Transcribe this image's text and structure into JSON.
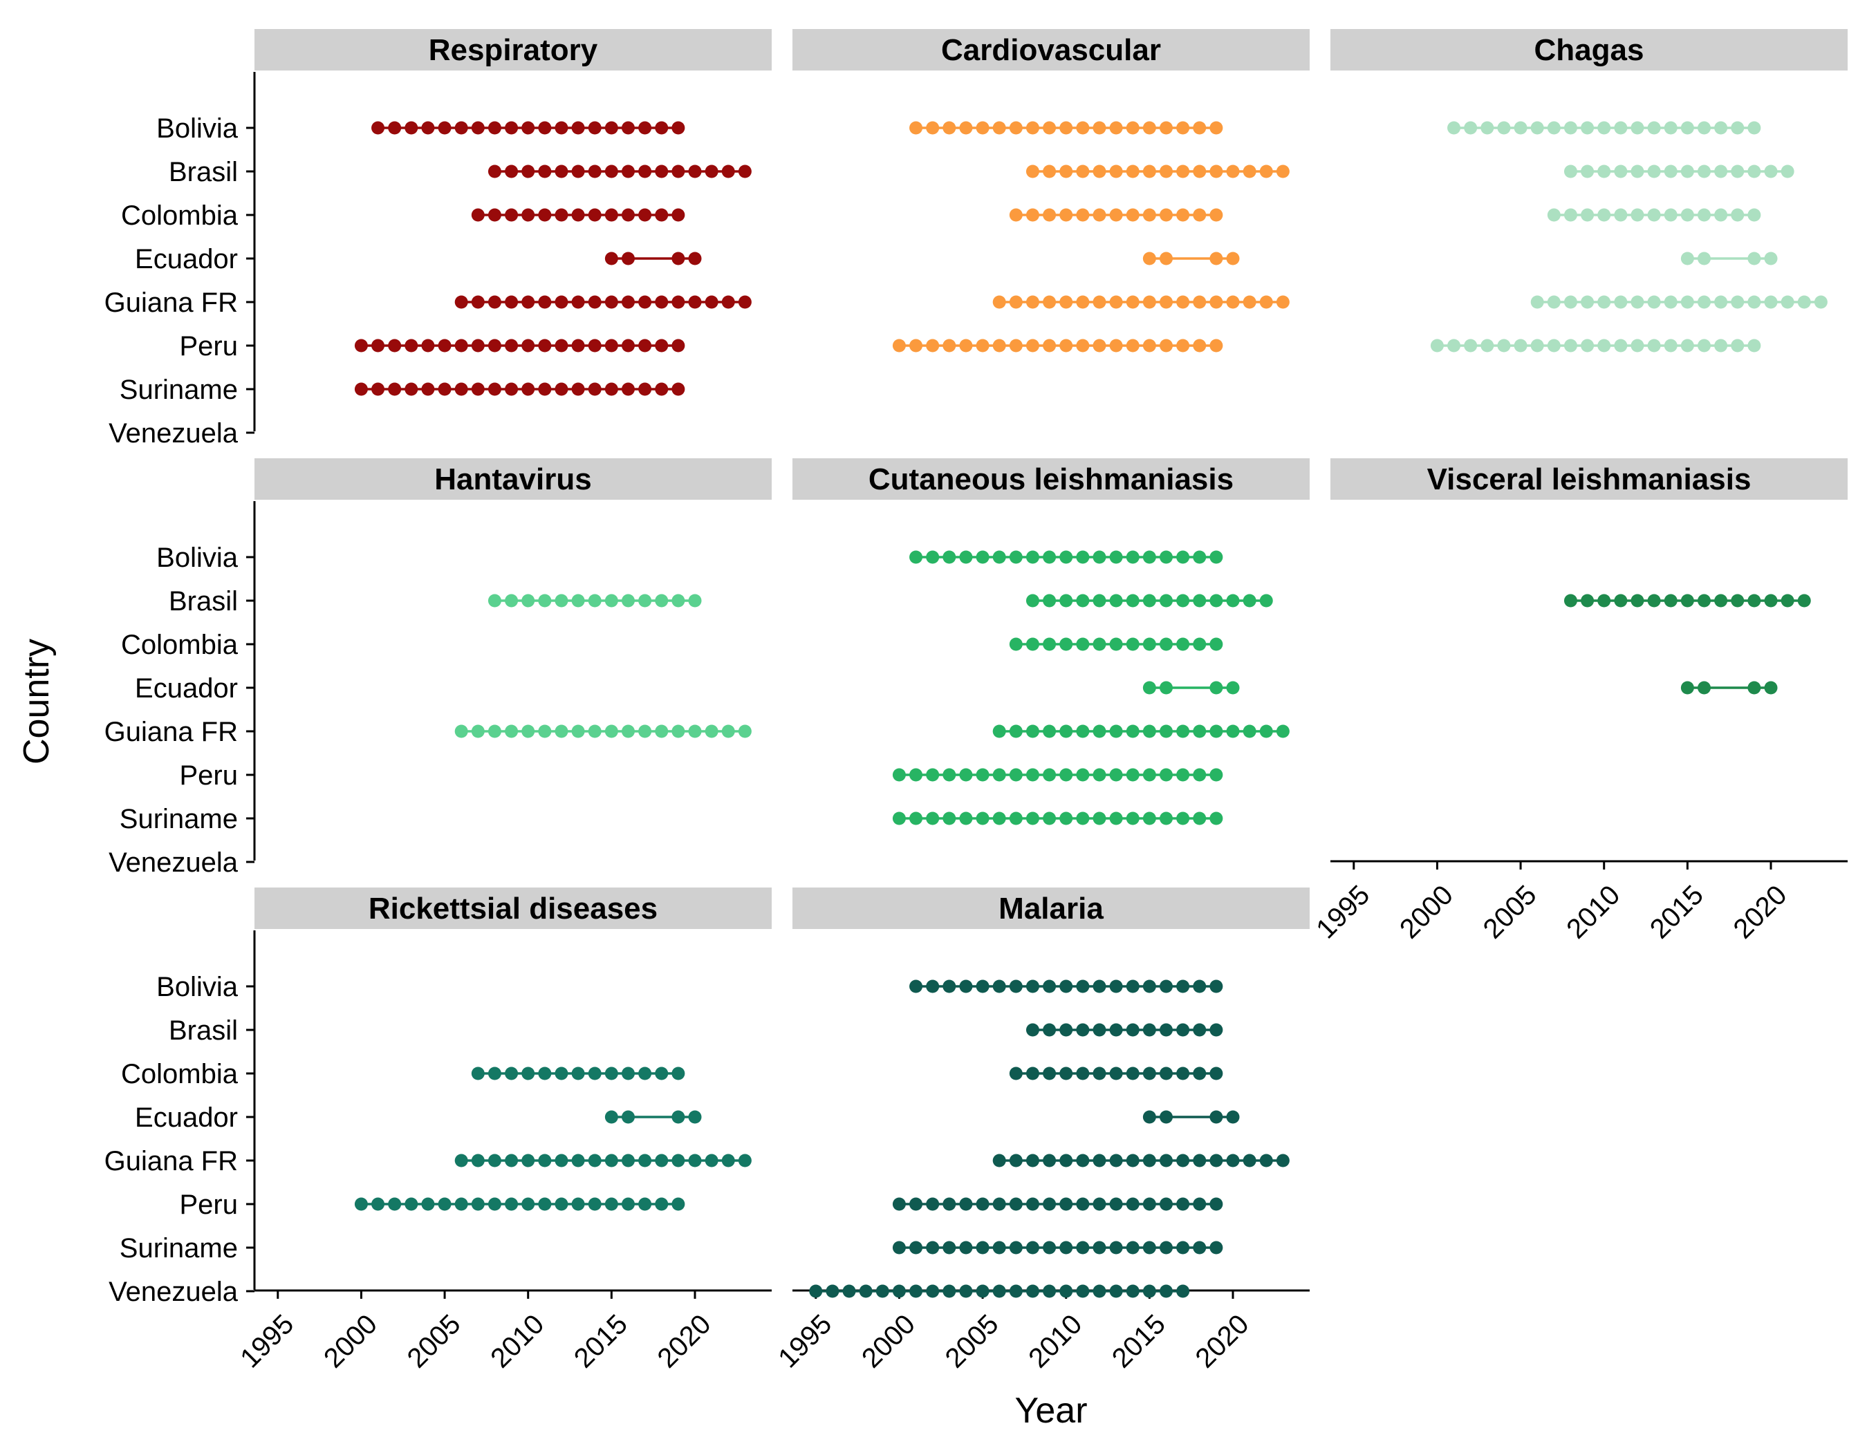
{
  "chart_data": {
    "type": "dot-timeline",
    "layout": "facets-3-columns",
    "xlabel": "Year",
    "ylabel": "Country",
    "xlim": [
      1993.6,
      2024.6
    ],
    "x_ticks": [
      1995,
      2000,
      2005,
      2010,
      2015,
      2020
    ],
    "x_tick_labels": [
      "1995",
      "2000",
      "2005",
      "2010",
      "2015",
      "2020"
    ],
    "categories": [
      "Bolivia",
      "Brasil",
      "Colombia",
      "Ecuador",
      "Guiana FR",
      "Peru",
      "Suriname",
      "Venezuela"
    ],
    "grid": false,
    "legend": "none",
    "panels": [
      {
        "title": "Respiratory",
        "color": "#980a0a",
        "series": [
          {
            "country": "Bolivia",
            "years": [
              2001,
              2002,
              2003,
              2004,
              2005,
              2006,
              2007,
              2008,
              2009,
              2010,
              2011,
              2012,
              2013,
              2014,
              2015,
              2016,
              2017,
              2018,
              2019
            ]
          },
          {
            "country": "Brasil",
            "years": [
              2008,
              2009,
              2010,
              2011,
              2012,
              2013,
              2014,
              2015,
              2016,
              2017,
              2018,
              2019,
              2020,
              2021,
              2022,
              2023
            ]
          },
          {
            "country": "Colombia",
            "years": [
              2007,
              2008,
              2009,
              2010,
              2011,
              2012,
              2013,
              2014,
              2015,
              2016,
              2017,
              2018,
              2019
            ]
          },
          {
            "country": "Ecuador",
            "years": [
              2015,
              2016,
              2019,
              2020
            ]
          },
          {
            "country": "Guiana FR",
            "years": [
              2006,
              2007,
              2008,
              2009,
              2010,
              2011,
              2012,
              2013,
              2014,
              2015,
              2016,
              2017,
              2018,
              2019,
              2020,
              2021,
              2022,
              2023
            ]
          },
          {
            "country": "Peru",
            "years": [
              2000,
              2001,
              2002,
              2003,
              2004,
              2005,
              2006,
              2007,
              2008,
              2009,
              2010,
              2011,
              2012,
              2013,
              2014,
              2015,
              2016,
              2017,
              2018,
              2019
            ]
          },
          {
            "country": "Suriname",
            "years": [
              2000,
              2001,
              2002,
              2003,
              2004,
              2005,
              2006,
              2007,
              2008,
              2009,
              2010,
              2011,
              2012,
              2013,
              2014,
              2015,
              2016,
              2017,
              2018,
              2019
            ]
          }
        ]
      },
      {
        "title": "Cardiovascular",
        "color": "#fb9a3d",
        "series": [
          {
            "country": "Bolivia",
            "years": [
              2001,
              2002,
              2003,
              2004,
              2005,
              2006,
              2007,
              2008,
              2009,
              2010,
              2011,
              2012,
              2013,
              2014,
              2015,
              2016,
              2017,
              2018,
              2019
            ]
          },
          {
            "country": "Brasil",
            "years": [
              2008,
              2009,
              2010,
              2011,
              2012,
              2013,
              2014,
              2015,
              2016,
              2017,
              2018,
              2019,
              2020,
              2021,
              2022,
              2023
            ]
          },
          {
            "country": "Colombia",
            "years": [
              2007,
              2008,
              2009,
              2010,
              2011,
              2012,
              2013,
              2014,
              2015,
              2016,
              2017,
              2018,
              2019
            ]
          },
          {
            "country": "Ecuador",
            "years": [
              2015,
              2016,
              2019,
              2020
            ]
          },
          {
            "country": "Guiana FR",
            "years": [
              2006,
              2007,
              2008,
              2009,
              2010,
              2011,
              2012,
              2013,
              2014,
              2015,
              2016,
              2017,
              2018,
              2019,
              2020,
              2021,
              2022,
              2023
            ]
          },
          {
            "country": "Peru",
            "years": [
              2000,
              2001,
              2002,
              2003,
              2004,
              2005,
              2006,
              2007,
              2008,
              2009,
              2010,
              2011,
              2012,
              2013,
              2014,
              2015,
              2016,
              2017,
              2018,
              2019
            ]
          }
        ]
      },
      {
        "title": "Chagas",
        "color": "#ace0c1",
        "series": [
          {
            "country": "Bolivia",
            "years": [
              2001,
              2002,
              2003,
              2004,
              2005,
              2006,
              2007,
              2008,
              2009,
              2010,
              2011,
              2012,
              2013,
              2014,
              2015,
              2016,
              2017,
              2018,
              2019
            ]
          },
          {
            "country": "Brasil",
            "years": [
              2008,
              2009,
              2010,
              2011,
              2012,
              2013,
              2014,
              2015,
              2016,
              2017,
              2018,
              2019,
              2020,
              2021
            ]
          },
          {
            "country": "Colombia",
            "years": [
              2007,
              2008,
              2009,
              2010,
              2011,
              2012,
              2013,
              2014,
              2015,
              2016,
              2017,
              2018,
              2019
            ]
          },
          {
            "country": "Ecuador",
            "years": [
              2015,
              2016,
              2019,
              2020
            ]
          },
          {
            "country": "Guiana FR",
            "years": [
              2006,
              2007,
              2008,
              2009,
              2010,
              2011,
              2012,
              2013,
              2014,
              2015,
              2016,
              2017,
              2018,
              2019,
              2020,
              2021,
              2022,
              2023
            ]
          },
          {
            "country": "Peru",
            "years": [
              2000,
              2001,
              2002,
              2003,
              2004,
              2005,
              2006,
              2007,
              2008,
              2009,
              2010,
              2011,
              2012,
              2013,
              2014,
              2015,
              2016,
              2017,
              2018,
              2019
            ]
          }
        ]
      },
      {
        "title": "Hantavirus",
        "color": "#5ad18f",
        "series": [
          {
            "country": "Brasil",
            "years": [
              2008,
              2009,
              2010,
              2011,
              2012,
              2013,
              2014,
              2015,
              2016,
              2017,
              2018,
              2019,
              2020
            ]
          },
          {
            "country": "Guiana FR",
            "years": [
              2006,
              2007,
              2008,
              2009,
              2010,
              2011,
              2012,
              2013,
              2014,
              2015,
              2016,
              2017,
              2018,
              2019,
              2020,
              2021,
              2022,
              2023
            ]
          }
        ]
      },
      {
        "title": "Cutaneous leishmaniasis",
        "color": "#27b463",
        "series": [
          {
            "country": "Bolivia",
            "years": [
              2001,
              2002,
              2003,
              2004,
              2005,
              2006,
              2007,
              2008,
              2009,
              2010,
              2011,
              2012,
              2013,
              2014,
              2015,
              2016,
              2017,
              2018,
              2019
            ]
          },
          {
            "country": "Brasil",
            "years": [
              2008,
              2009,
              2010,
              2011,
              2012,
              2013,
              2014,
              2015,
              2016,
              2017,
              2018,
              2019,
              2020,
              2021,
              2022
            ]
          },
          {
            "country": "Colombia",
            "years": [
              2007,
              2008,
              2009,
              2010,
              2011,
              2012,
              2013,
              2014,
              2015,
              2016,
              2017,
              2018,
              2019
            ]
          },
          {
            "country": "Ecuador",
            "years": [
              2015,
              2016,
              2019,
              2020
            ]
          },
          {
            "country": "Guiana FR",
            "years": [
              2006,
              2007,
              2008,
              2009,
              2010,
              2011,
              2012,
              2013,
              2014,
              2015,
              2016,
              2017,
              2018,
              2019,
              2020,
              2021,
              2022,
              2023
            ]
          },
          {
            "country": "Peru",
            "years": [
              2000,
              2001,
              2002,
              2003,
              2004,
              2005,
              2006,
              2007,
              2008,
              2009,
              2010,
              2011,
              2012,
              2013,
              2014,
              2015,
              2016,
              2017,
              2018,
              2019
            ]
          },
          {
            "country": "Suriname",
            "years": [
              2000,
              2001,
              2002,
              2003,
              2004,
              2005,
              2006,
              2007,
              2008,
              2009,
              2010,
              2011,
              2012,
              2013,
              2014,
              2015,
              2016,
              2017,
              2018,
              2019
            ]
          }
        ]
      },
      {
        "title": "Visceral leishmaniasis",
        "color": "#1e8a4c",
        "series": [
          {
            "country": "Brasil",
            "years": [
              2008,
              2009,
              2010,
              2011,
              2012,
              2013,
              2014,
              2015,
              2016,
              2017,
              2018,
              2019,
              2020,
              2021,
              2022
            ]
          },
          {
            "country": "Ecuador",
            "years": [
              2015,
              2016,
              2019,
              2020
            ]
          }
        ]
      },
      {
        "title": "Rickettsial diseases",
        "color": "#147864",
        "series": [
          {
            "country": "Colombia",
            "years": [
              2007,
              2008,
              2009,
              2010,
              2011,
              2012,
              2013,
              2014,
              2015,
              2016,
              2017,
              2018,
              2019
            ]
          },
          {
            "country": "Ecuador",
            "years": [
              2015,
              2016,
              2019,
              2020
            ]
          },
          {
            "country": "Guiana FR",
            "years": [
              2006,
              2007,
              2008,
              2009,
              2010,
              2011,
              2012,
              2013,
              2014,
              2015,
              2016,
              2017,
              2018,
              2019,
              2020,
              2021,
              2022,
              2023
            ]
          },
          {
            "country": "Peru",
            "years": [
              2000,
              2001,
              2002,
              2003,
              2004,
              2005,
              2006,
              2007,
              2008,
              2009,
              2010,
              2011,
              2012,
              2013,
              2014,
              2015,
              2016,
              2017,
              2018,
              2019
            ]
          }
        ]
      },
      {
        "title": "Malaria",
        "color": "#0f5a50",
        "series": [
          {
            "country": "Bolivia",
            "years": [
              2001,
              2002,
              2003,
              2004,
              2005,
              2006,
              2007,
              2008,
              2009,
              2010,
              2011,
              2012,
              2013,
              2014,
              2015,
              2016,
              2017,
              2018,
              2019
            ]
          },
          {
            "country": "Brasil",
            "years": [
              2008,
              2009,
              2010,
              2011,
              2012,
              2013,
              2014,
              2015,
              2016,
              2017,
              2018,
              2019
            ]
          },
          {
            "country": "Colombia",
            "years": [
              2007,
              2008,
              2009,
              2010,
              2011,
              2012,
              2013,
              2014,
              2015,
              2016,
              2017,
              2018,
              2019
            ]
          },
          {
            "country": "Ecuador",
            "years": [
              2015,
              2016,
              2019,
              2020
            ]
          },
          {
            "country": "Guiana FR",
            "years": [
              2006,
              2007,
              2008,
              2009,
              2010,
              2011,
              2012,
              2013,
              2014,
              2015,
              2016,
              2017,
              2018,
              2019,
              2020,
              2021,
              2022,
              2023
            ]
          },
          {
            "country": "Peru",
            "years": [
              2000,
              2001,
              2002,
              2003,
              2004,
              2005,
              2006,
              2007,
              2008,
              2009,
              2010,
              2011,
              2012,
              2013,
              2014,
              2015,
              2016,
              2017,
              2018,
              2019
            ]
          },
          {
            "country": "Suriname",
            "years": [
              2000,
              2001,
              2002,
              2003,
              2004,
              2005,
              2006,
              2007,
              2008,
              2009,
              2010,
              2011,
              2012,
              2013,
              2014,
              2015,
              2016,
              2017,
              2018,
              2019
            ]
          },
          {
            "country": "Venezuela",
            "years": [
              1995,
              1996,
              1997,
              1998,
              1999,
              2000,
              2001,
              2002,
              2003,
              2004,
              2005,
              2006,
              2007,
              2008,
              2009,
              2010,
              2011,
              2012,
              2013,
              2014,
              2015,
              2016,
              2017
            ]
          }
        ]
      }
    ]
  }
}
